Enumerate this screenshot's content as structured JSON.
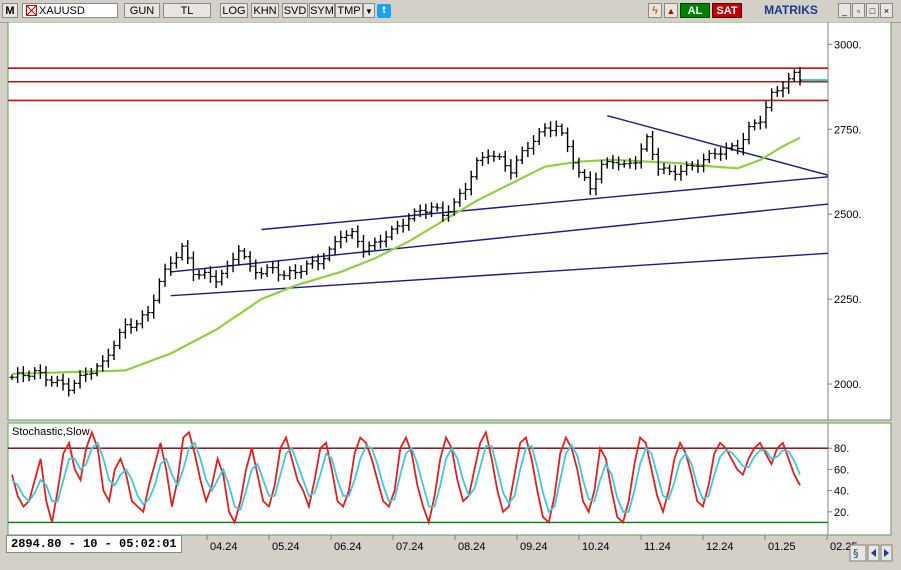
{
  "toolbar": {
    "menu_letter": "M",
    "symbol": "XAUUSD",
    "buttons": [
      "GUN",
      "TL",
      "LOG",
      "KHN",
      "SVD",
      "SYM",
      "TMP"
    ],
    "buy_label": "AL",
    "sell_label": "SAT",
    "brand": "MATRIKS",
    "colors": {
      "buy": "#008000",
      "sell": "#c00000",
      "brand": "#1a3a8a",
      "twitter": "#1da1f2"
    }
  },
  "status": {
    "readout": "2894.80 - 10 - 05:02:01"
  },
  "chart_data": [
    {
      "type": "candlestick",
      "symbol": "XAUUSD",
      "title": "",
      "ylim": [
        1900,
        3060
      ],
      "y_ticks": [
        "3000.",
        "2750.",
        "2500.",
        "2250.",
        "2000."
      ],
      "x_ticks": [
        "04.24",
        "05.24",
        "06.24",
        "07.24",
        "08.24",
        "09.24",
        "10.24",
        "11.24",
        "12.24",
        "01.25",
        "02.25"
      ],
      "grid": false,
      "price_path": [
        [
          0,
          2020
        ],
        [
          4,
          2035
        ],
        [
          7,
          2010
        ],
        [
          10,
          1990
        ],
        [
          13,
          2030
        ],
        [
          16,
          2060
        ],
        [
          18,
          2120
        ],
        [
          20,
          2170
        ],
        [
          22,
          2180
        ],
        [
          24,
          2210
        ],
        [
          26,
          2300
        ],
        [
          28,
          2360
        ],
        [
          30,
          2400
        ],
        [
          32,
          2330
        ],
        [
          34,
          2320
        ],
        [
          36,
          2310
        ],
        [
          38,
          2340
        ],
        [
          40,
          2400
        ],
        [
          42,
          2340
        ],
        [
          44,
          2330
        ],
        [
          46,
          2340
        ],
        [
          48,
          2320
        ],
        [
          50,
          2330
        ],
        [
          52,
          2350
        ],
        [
          54,
          2360
        ],
        [
          56,
          2390
        ],
        [
          58,
          2440
        ],
        [
          60,
          2440
        ],
        [
          62,
          2400
        ],
        [
          64,
          2410
        ],
        [
          66,
          2440
        ],
        [
          68,
          2460
        ],
        [
          70,
          2490
        ],
        [
          72,
          2510
        ],
        [
          74,
          2520
        ],
        [
          76,
          2500
        ],
        [
          78,
          2530
        ],
        [
          80,
          2580
        ],
        [
          82,
          2650
        ],
        [
          84,
          2680
        ],
        [
          86,
          2660
        ],
        [
          88,
          2630
        ],
        [
          90,
          2680
        ],
        [
          92,
          2720
        ],
        [
          94,
          2750
        ],
        [
          96,
          2760
        ],
        [
          98,
          2700
        ],
        [
          100,
          2620
        ],
        [
          102,
          2580
        ],
        [
          104,
          2640
        ],
        [
          106,
          2660
        ],
        [
          108,
          2640
        ],
        [
          110,
          2660
        ],
        [
          112,
          2720
        ],
        [
          114,
          2640
        ],
        [
          116,
          2620
        ],
        [
          118,
          2630
        ],
        [
          120,
          2640
        ],
        [
          122,
          2660
        ],
        [
          124,
          2680
        ],
        [
          126,
          2690
        ],
        [
          128,
          2700
        ],
        [
          130,
          2750
        ],
        [
          132,
          2780
        ],
        [
          134,
          2850
        ],
        [
          136,
          2880
        ],
        [
          138,
          2910
        ],
        [
          139,
          2894.8
        ]
      ],
      "moving_average": {
        "color": "#90d040",
        "points": [
          [
            0,
            2030
          ],
          [
            20,
            2040
          ],
          [
            28,
            2090
          ],
          [
            36,
            2160
          ],
          [
            44,
            2250
          ],
          [
            50,
            2290
          ],
          [
            58,
            2330
          ],
          [
            64,
            2370
          ],
          [
            70,
            2420
          ],
          [
            76,
            2480
          ],
          [
            82,
            2540
          ],
          [
            88,
            2590
          ],
          [
            94,
            2640
          ],
          [
            100,
            2655
          ],
          [
            106,
            2660
          ],
          [
            112,
            2655
          ],
          [
            118,
            2650
          ],
          [
            124,
            2640
          ],
          [
            128,
            2635
          ],
          [
            132,
            2660
          ],
          [
            136,
            2700
          ],
          [
            139,
            2725
          ]
        ]
      },
      "resistance_levels": {
        "color": "#c01010",
        "values": [
          2930,
          2890,
          2835
        ]
      },
      "trendlines": {
        "color": "#1a1a8a",
        "lines": [
          {
            "from": [
              28,
              2330
            ],
            "to": [
              139,
              2530
            ]
          },
          {
            "from": [
              44,
              2455
            ],
            "to": [
              139,
              2610
            ]
          },
          {
            "from": [
              105,
              2790
            ],
            "to": [
              139,
              2615
            ]
          },
          {
            "from": [
              28,
              2260
            ],
            "to": [
              139,
              2385
            ]
          }
        ]
      },
      "last_price": 2894.8,
      "last_price_marker_color": "#20d0d0"
    },
    {
      "type": "line",
      "title": "Stochastic,Slow",
      "ylim": [
        0,
        100
      ],
      "y_ticks": [
        "80.",
        "60.",
        "40.",
        "20."
      ],
      "levels": [
        {
          "value": 80,
          "color": "#800000"
        },
        {
          "value": 10,
          "color": "#008000"
        }
      ],
      "series": [
        {
          "color": "#e02020",
          "values": [
            55,
            35,
            25,
            30,
            50,
            70,
            30,
            10,
            40,
            75,
            85,
            60,
            50,
            80,
            95,
            80,
            40,
            30,
            60,
            70,
            55,
            30,
            25,
            20,
            45,
            65,
            85,
            60,
            25,
            50,
            90,
            95,
            75,
            50,
            30,
            45,
            70,
            55,
            20,
            10,
            30,
            60,
            80,
            55,
            30,
            25,
            45,
            80,
            90,
            70,
            50,
            40,
            25,
            50,
            80,
            85,
            60,
            30,
            25,
            40,
            75,
            90,
            85,
            70,
            50,
            30,
            25,
            40,
            80,
            90,
            75,
            45,
            25,
            10,
            35,
            70,
            90,
            80,
            50,
            30,
            35,
            60,
            85,
            95,
            70,
            40,
            20,
            25,
            55,
            85,
            90,
            70,
            40,
            15,
            10,
            35,
            75,
            90,
            80,
            60,
            30,
            20,
            40,
            80,
            70,
            40,
            15,
            10,
            30,
            65,
            90,
            85,
            60,
            35,
            20,
            40,
            70,
            85,
            75,
            55,
            30,
            25,
            45,
            75,
            85,
            80,
            70,
            60,
            55,
            70,
            80,
            85,
            75,
            65,
            80,
            85,
            70,
            55,
            45
          ]
        },
        {
          "color": "#40c8d8",
          "values": [
            50,
            45,
            35,
            30,
            38,
            50,
            45,
            30,
            30,
            50,
            70,
            70,
            60,
            65,
            80,
            85,
            70,
            50,
            45,
            55,
            60,
            50,
            35,
            27,
            32,
            45,
            65,
            70,
            55,
            45,
            60,
            80,
            85,
            70,
            50,
            40,
            50,
            60,
            45,
            25,
            22,
            40,
            60,
            65,
            50,
            35,
            35,
            55,
            75,
            80,
            65,
            50,
            35,
            38,
            55,
            75,
            70,
            50,
            35,
            35,
            50,
            70,
            82,
            80,
            65,
            45,
            30,
            32,
            55,
            75,
            80,
            65,
            45,
            25,
            25,
            45,
            70,
            80,
            70,
            50,
            35,
            42,
            62,
            82,
            82,
            60,
            38,
            28,
            35,
            60,
            80,
            82,
            62,
            38,
            20,
            25,
            50,
            75,
            83,
            73,
            50,
            32,
            30,
            50,
            65,
            55,
            33,
            20,
            20,
            40,
            65,
            80,
            75,
            55,
            35,
            32,
            48,
            68,
            75,
            65,
            45,
            32,
            35,
            55,
            72,
            78,
            76,
            70,
            63,
            62,
            72,
            78,
            78,
            70,
            72,
            78,
            77,
            68,
            55
          ]
        }
      ]
    }
  ]
}
